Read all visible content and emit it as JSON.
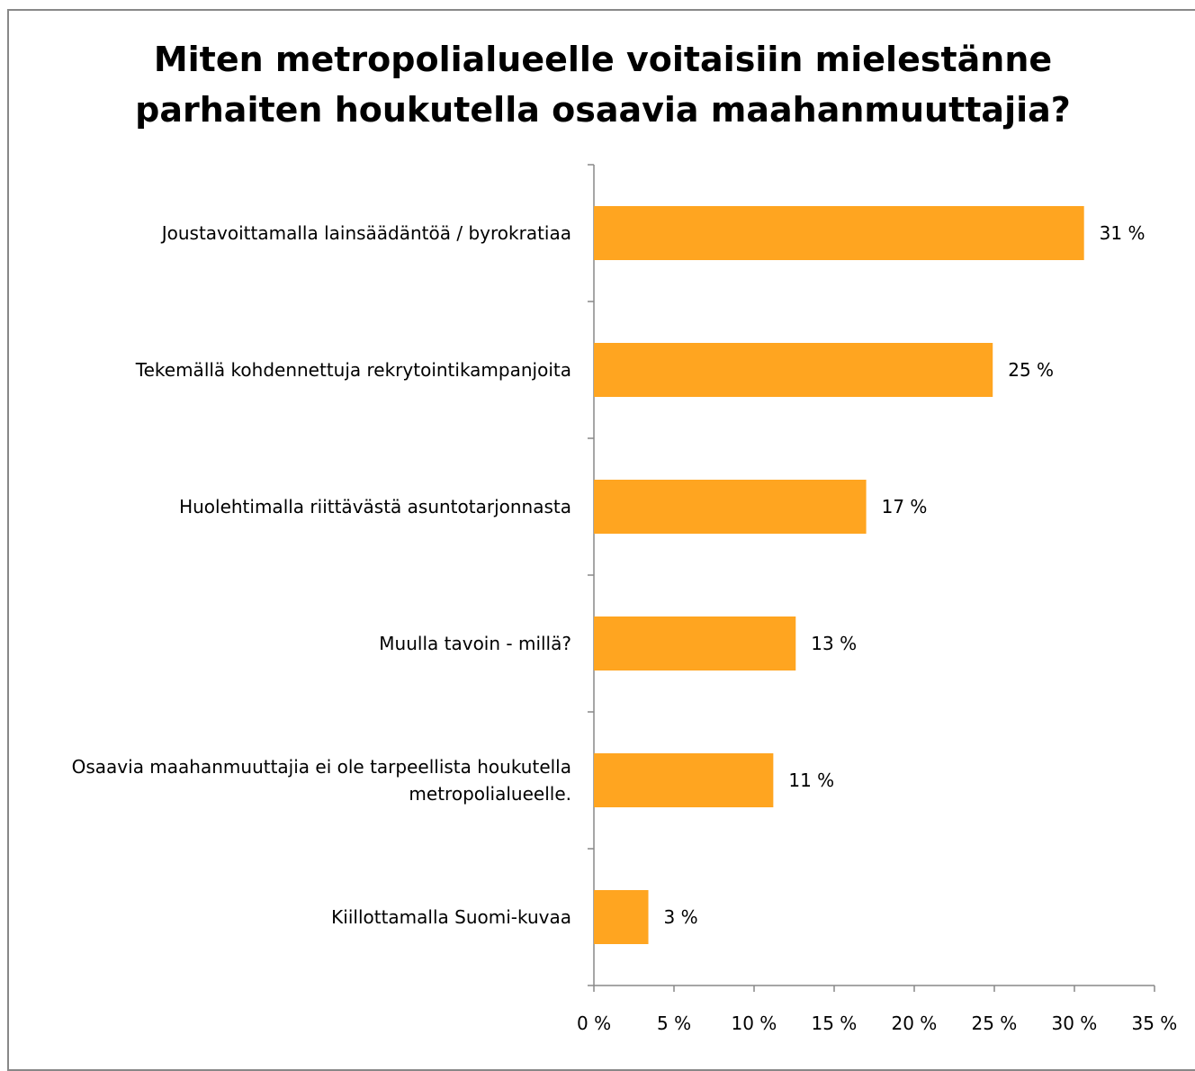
{
  "chart_data": {
    "type": "bar",
    "orientation": "horizontal",
    "title": "Miten metropolialueelle voitaisiin mielestänne parhaiten houkutella osaavia maahanmuuttajia?",
    "categories": [
      "Joustavoittamalla lainsäädäntöä / byrokratiaa",
      "Tekemällä kohdennettuja rekrytointikampanjoita",
      "Huolehtimalla riittävästä asuntotarjonnasta",
      "Muulla tavoin - millä?",
      "Osaavia maahanmuuttajia ei ole tarpeellista houkutella metropolialueelle.",
      "Kiillottamalla Suomi-kuvaa"
    ],
    "values": [
      30.6,
      24.9,
      17.0,
      12.6,
      11.2,
      3.4
    ],
    "value_labels": [
      "31 %",
      "25 %",
      "17 %",
      "13 %",
      "11 %",
      "3 %"
    ],
    "color": "#ffa520",
    "xlim": [
      0,
      35
    ],
    "xticks": [
      {
        "value": 0,
        "label": "0 %"
      },
      {
        "value": 5,
        "label": "5 %"
      },
      {
        "value": 10,
        "label": "10 %"
      },
      {
        "value": 15,
        "label": "15 %"
      },
      {
        "value": 20,
        "label": "20 %"
      },
      {
        "value": 25,
        "label": "25 %"
      },
      {
        "value": 30,
        "label": "30 %"
      },
      {
        "value": 35,
        "label": "35 %"
      }
    ],
    "grid": false
  }
}
